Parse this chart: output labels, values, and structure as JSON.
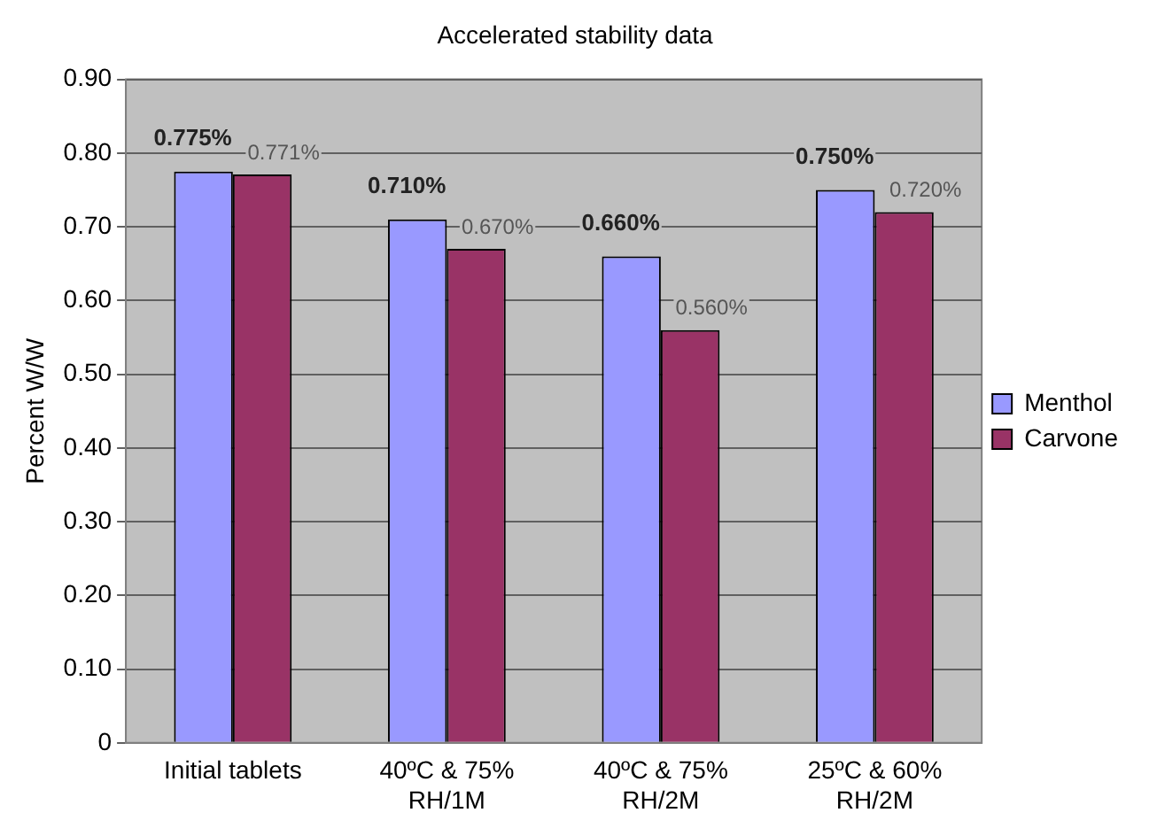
{
  "chart_data": {
    "type": "bar",
    "title": "Accelerated stability data",
    "ylabel": "Percent W/W",
    "categories": [
      "Initial tablets",
      "40ºC & 75% RH/1M",
      "40ºC & 75% RH/2M",
      "25ºC & 60% RH/2M"
    ],
    "series": [
      {
        "name": "Menthol",
        "color": "#9999ff",
        "values": [
          0.775,
          0.71,
          0.66,
          0.75
        ],
        "value_labels": [
          "0.775%",
          "0.710%",
          "0.660%",
          "0.750%"
        ]
      },
      {
        "name": "Carvone",
        "color": "#993366",
        "values": [
          0.771,
          0.67,
          0.56,
          0.72
        ],
        "value_labels": [
          "0.771%",
          "0.670%",
          "0.560%",
          "0.720%"
        ]
      }
    ],
    "ylim": [
      0,
      0.9
    ],
    "yticks": [
      0,
      {
        "value": 0.1,
        "label": "0.10"
      },
      {
        "value": 0.2,
        "label": "0.20"
      },
      {
        "value": 0.3,
        "label": "0.30"
      },
      {
        "value": 0.4,
        "label": "0.40"
      },
      {
        "value": 0.5,
        "label": "0.50"
      },
      {
        "value": 0.6,
        "label": "0.60"
      },
      {
        "value": 0.7,
        "label": "0.70"
      },
      {
        "value": 0.8,
        "label": "0.80"
      },
      {
        "value": 0.9,
        "label": "0.90"
      }
    ],
    "grid": "y",
    "legend": "right"
  }
}
